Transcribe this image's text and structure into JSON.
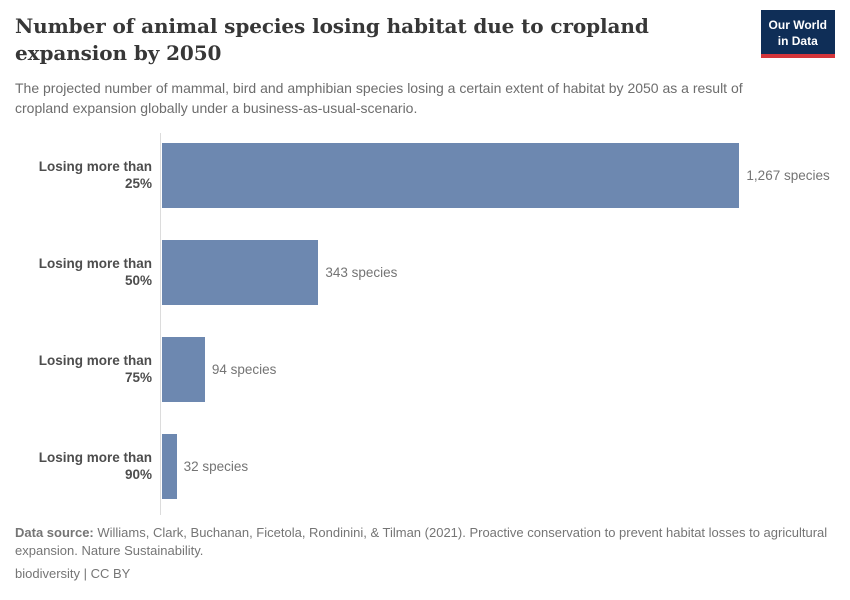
{
  "branding": {
    "logo_line1": "Our World",
    "logo_line2": "in Data",
    "bg_color": "#0f2e57",
    "accent_color": "#d4353a"
  },
  "chart_data": {
    "type": "bar",
    "orientation": "horizontal",
    "title": "Number of animal species losing habitat due to cropland expansion by 2050",
    "subtitle": "The projected number of mammal, bird and amphibian species losing a certain extent of habitat by 2050 as a result of cropland expansion globally under a business-as-usual-scenario.",
    "categories": [
      "Losing more than 25%",
      "Losing more than 50%",
      "Losing more than 75%",
      "Losing more than 90%"
    ],
    "values": [
      1267,
      343,
      94,
      32
    ],
    "value_labels": [
      "1,267 species",
      "343 species",
      "94 species",
      "32 species"
    ],
    "value_suffix": "species",
    "xlim": [
      0,
      1267
    ],
    "grid": false,
    "legend": "none",
    "bar_color": "#6d88b0"
  },
  "footer": {
    "source_label": "Data source:",
    "source_text": " Williams, Clark, Buchanan, Ficetola, Rondinini, & Tilman (2021). Proactive conservation to prevent habitat losses to agricultural expansion. Nature Sustainability.",
    "license_text": "biodiversity | CC BY"
  }
}
